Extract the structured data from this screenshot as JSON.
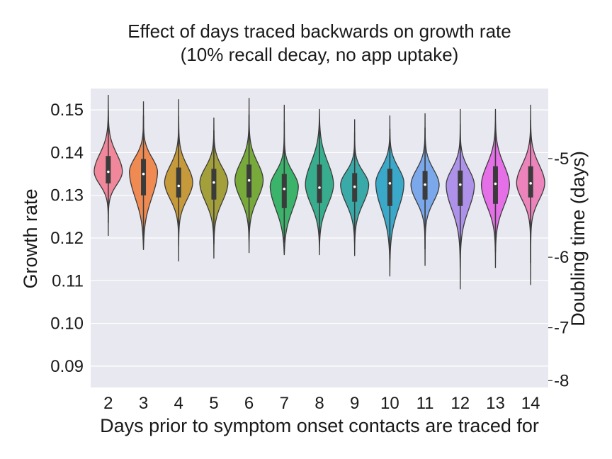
{
  "chart_data": {
    "type": "violin",
    "title": "Effect of days traced backwards on growth rate",
    "subtitle": "(10% recall decay, no app uptake)",
    "xlabel": "Days prior to symptom onset contacts are traced for",
    "ylabel": "Growth rate",
    "ylabel_right": "Doubling time (days)",
    "categories": [
      "2",
      "3",
      "4",
      "5",
      "6",
      "7",
      "8",
      "9",
      "10",
      "11",
      "12",
      "13",
      "14"
    ],
    "yticks": [
      "0.09",
      "0.10",
      "0.11",
      "0.12",
      "0.13",
      "0.14",
      "0.15"
    ],
    "ylim": [
      0.085,
      0.155
    ],
    "right_ticks": [
      {
        "label": "-5",
        "growth_rate": 0.1386
      },
      {
        "label": "-6",
        "growth_rate": 0.1155
      },
      {
        "label": "-7",
        "growth_rate": 0.099
      },
      {
        "label": "-8",
        "growth_rate": 0.0866
      }
    ],
    "series": [
      {
        "category": "2",
        "color": "#f0879a",
        "min": 0.1205,
        "q1": 0.1328,
        "median": 0.1355,
        "q3": 0.1392,
        "max": 0.1535,
        "mode": 0.1355
      },
      {
        "category": "3",
        "color": "#ef8a52",
        "min": 0.1172,
        "q1": 0.13,
        "median": 0.135,
        "q3": 0.1385,
        "max": 0.152,
        "mode": 0.1355
      },
      {
        "category": "4",
        "color": "#c69a3a",
        "min": 0.1145,
        "q1": 0.1295,
        "median": 0.1322,
        "q3": 0.1365,
        "max": 0.1525,
        "mode": 0.133
      },
      {
        "category": "5",
        "color": "#a3a03b",
        "min": 0.1152,
        "q1": 0.129,
        "median": 0.133,
        "q3": 0.1362,
        "max": 0.1482,
        "mode": 0.133
      },
      {
        "category": "6",
        "color": "#77a93b",
        "min": 0.1165,
        "q1": 0.1295,
        "median": 0.1335,
        "q3": 0.1372,
        "max": 0.1528,
        "mode": 0.1335
      },
      {
        "category": "7",
        "color": "#3bb36a",
        "min": 0.116,
        "q1": 0.127,
        "median": 0.1315,
        "q3": 0.135,
        "max": 0.1512,
        "mode": 0.132
      },
      {
        "category": "8",
        "color": "#38ad8e",
        "min": 0.116,
        "q1": 0.1282,
        "median": 0.1318,
        "q3": 0.1372,
        "max": 0.1502,
        "mode": 0.1325
      },
      {
        "category": "9",
        "color": "#3aaaa8",
        "min": 0.1158,
        "q1": 0.1285,
        "median": 0.132,
        "q3": 0.1352,
        "max": 0.1478,
        "mode": 0.1325
      },
      {
        "category": "10",
        "color": "#3aa8c8",
        "min": 0.111,
        "q1": 0.1275,
        "median": 0.1328,
        "q3": 0.1362,
        "max": 0.1487,
        "mode": 0.133
      },
      {
        "category": "11",
        "color": "#7aa8ea",
        "min": 0.1135,
        "q1": 0.129,
        "median": 0.1325,
        "q3": 0.1357,
        "max": 0.1492,
        "mode": 0.1325
      },
      {
        "category": "12",
        "color": "#ae92ea",
        "min": 0.108,
        "q1": 0.1275,
        "median": 0.1325,
        "q3": 0.1358,
        "max": 0.1502,
        "mode": 0.1325
      },
      {
        "category": "13",
        "color": "#e46fe6",
        "min": 0.113,
        "q1": 0.128,
        "median": 0.1327,
        "q3": 0.1368,
        "max": 0.1502,
        "mode": 0.1325
      },
      {
        "category": "14",
        "color": "#ec84bb",
        "min": 0.109,
        "q1": 0.1295,
        "median": 0.1328,
        "q3": 0.1368,
        "max": 0.1512,
        "mode": 0.133
      }
    ],
    "background": "#e8e8f0",
    "grid": true,
    "legend": "none"
  }
}
